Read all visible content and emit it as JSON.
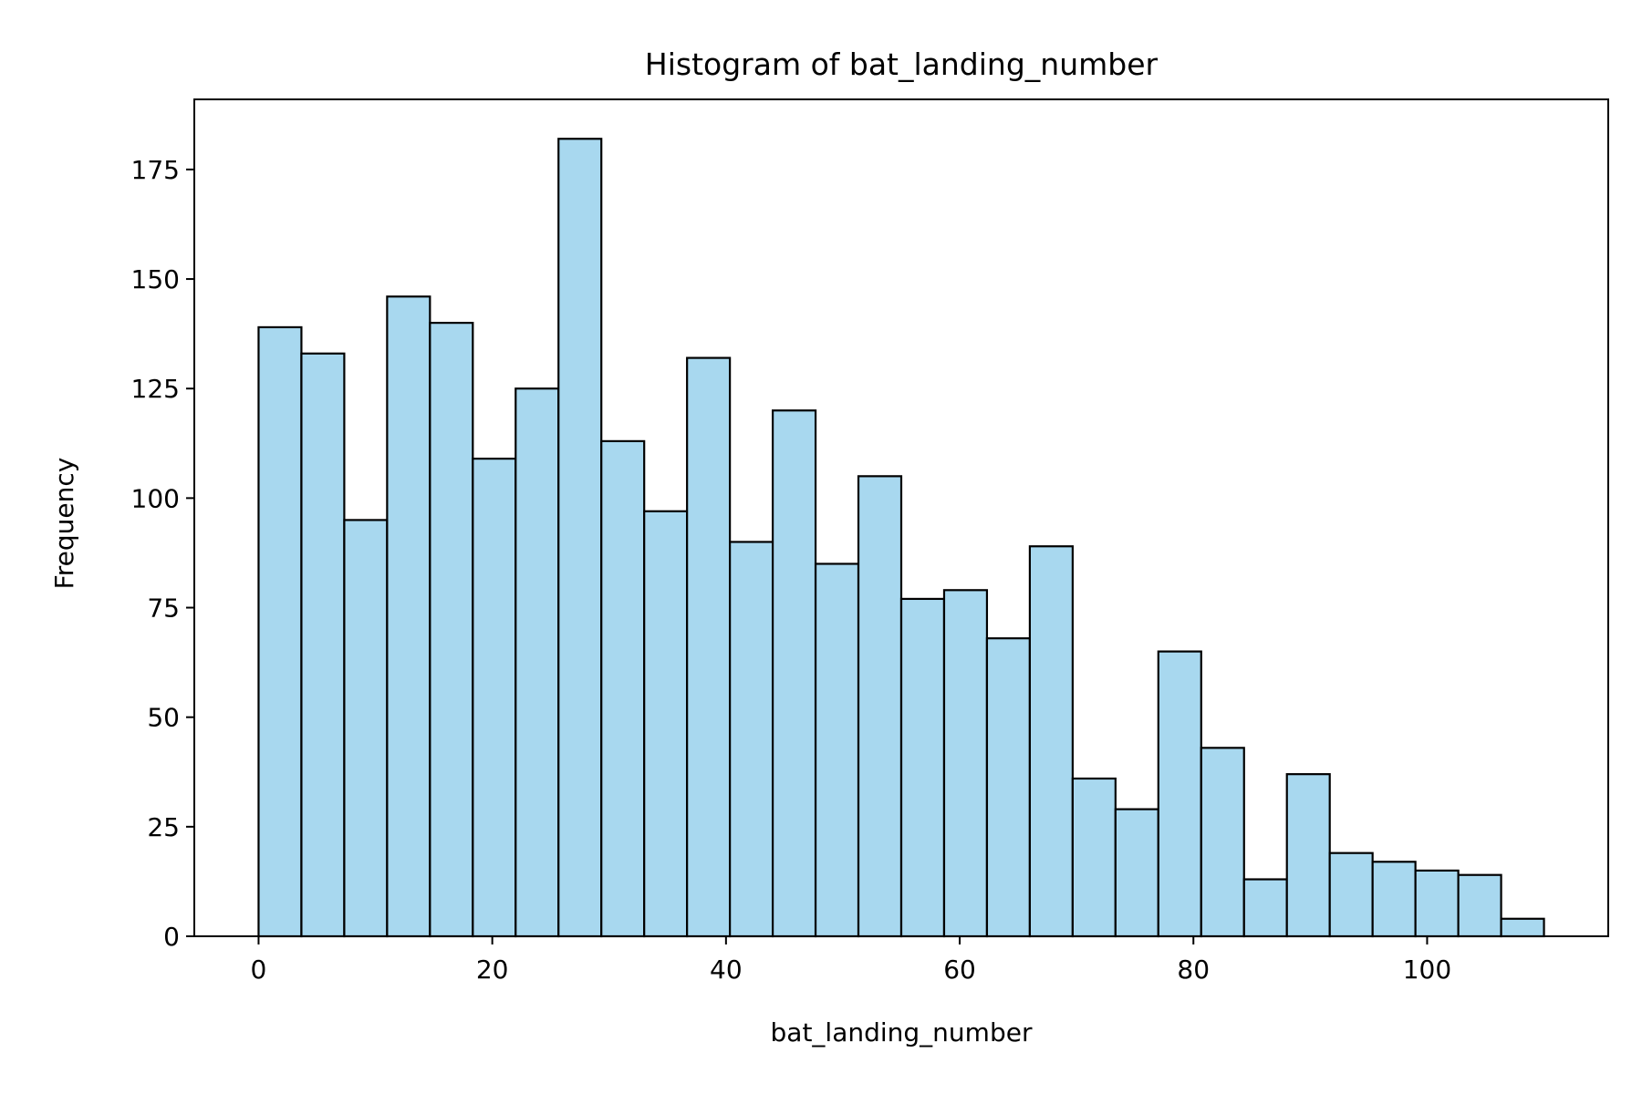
{
  "chart_data": {
    "type": "bar",
    "title": "Histogram of bat_landing_number",
    "xlabel": "bat_landing_number",
    "ylabel": "Frequency",
    "xlim": [
      -5.5,
      115.5
    ],
    "ylim": [
      0,
      191
    ],
    "x_ticks": [
      0,
      20,
      40,
      60,
      80,
      100
    ],
    "y_ticks": [
      0,
      25,
      50,
      75,
      100,
      125,
      150,
      175
    ],
    "bin_start": 0,
    "bin_end": 110,
    "bin_count": 30,
    "values": [
      139,
      133,
      95,
      146,
      140,
      109,
      125,
      182,
      113,
      97,
      132,
      90,
      120,
      85,
      105,
      77,
      79,
      68,
      89,
      36,
      29,
      65,
      43,
      13,
      37,
      19,
      17,
      15,
      14,
      4
    ],
    "bar_fill": "#a8d8ef",
    "bar_edge": "#000000",
    "grid": false,
    "legend": "none"
  }
}
